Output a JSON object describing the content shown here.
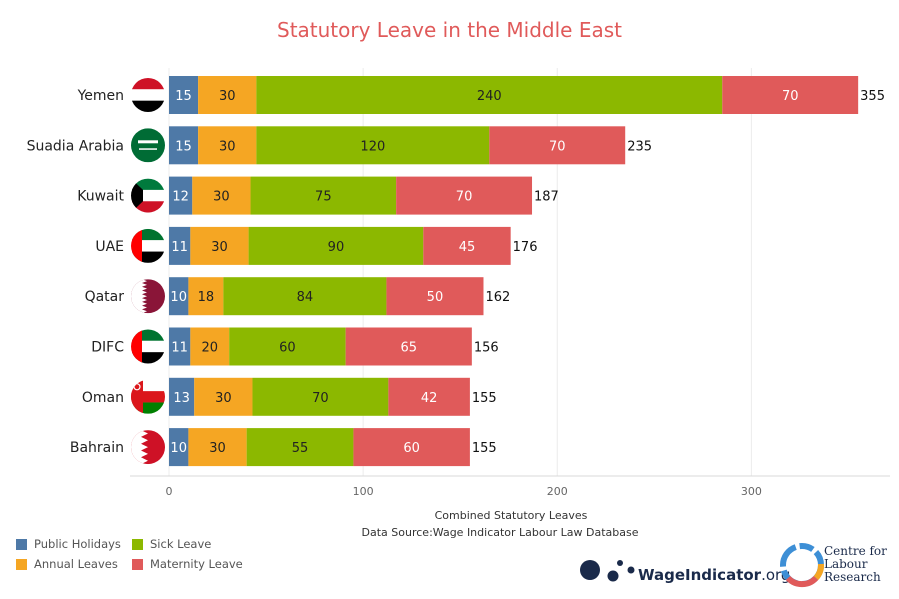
{
  "chart_data": {
    "type": "bar",
    "orientation": "horizontal",
    "stacked": true,
    "title": "Statutory Leave in the Middle East",
    "xlabel": "Combined Statutory Leaves",
    "source": "Data Source:Wage Indicator Labour Law Database",
    "xlim": [
      0,
      370
    ],
    "xticks": [
      0,
      100,
      200,
      300
    ],
    "grid": true,
    "legend_position": "bottom-left",
    "categories": [
      "Yemen",
      "Suadia Arabia",
      "Kuwait",
      "UAE",
      "Qatar",
      "DIFC",
      "Oman",
      "Bahrain"
    ],
    "series": [
      {
        "name": "Public Holidays",
        "color": "#4e79a7",
        "values": [
          15,
          15,
          12,
          11,
          10,
          11,
          13,
          10
        ]
      },
      {
        "name": "Annual Leaves",
        "color": "#f5a623",
        "values": [
          30,
          30,
          30,
          30,
          18,
          20,
          30,
          30
        ]
      },
      {
        "name": "Sick Leave",
        "color": "#8cb800",
        "values": [
          240,
          120,
          75,
          90,
          84,
          60,
          70,
          55
        ]
      },
      {
        "name": "Maternity Leave",
        "color": "#e05a5a",
        "values": [
          70,
          70,
          70,
          45,
          50,
          65,
          42,
          60
        ]
      }
    ],
    "totals": [
      355,
      235,
      187,
      176,
      162,
      156,
      155,
      155
    ]
  },
  "legend": {
    "items": [
      {
        "label": "Public Holidays",
        "color": "#4e79a7"
      },
      {
        "label": "Sick Leave",
        "color": "#8cb800"
      },
      {
        "label": "Annual Leaves",
        "color": "#f5a623"
      },
      {
        "label": "Maternity Leave",
        "color": "#e05a5a"
      }
    ]
  },
  "logos": {
    "wageindicator_bold": "WageIndicator",
    "wageindicator_light": ".org",
    "clr_line1": "Centre for",
    "clr_line2": "Labour",
    "clr_line3": "Research"
  },
  "flags": [
    "yemen-flag-icon",
    "saudi-arabia-flag-icon",
    "kuwait-flag-icon",
    "uae-flag-icon",
    "qatar-flag-icon",
    "uae-flag-icon",
    "oman-flag-icon",
    "bahrain-flag-icon"
  ]
}
